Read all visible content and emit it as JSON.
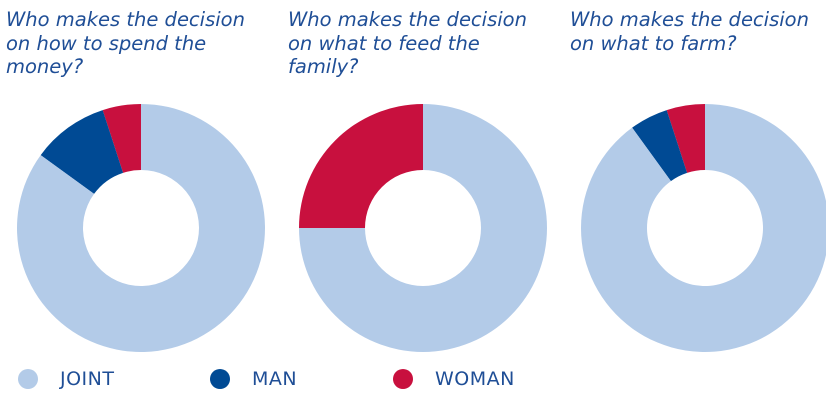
{
  "colors": {
    "joint": "#b3cbe8",
    "man": "#004a94",
    "woman": "#c8103e",
    "title": "#1f4e96"
  },
  "legend": [
    {
      "key": "joint",
      "label": "JOINT"
    },
    {
      "key": "man",
      "label": "MAN"
    },
    {
      "key": "woman",
      "label": "WOMAN"
    }
  ],
  "chart_data": [
    {
      "type": "pie",
      "title": "Who makes the decision\non how to spend the\nmoney?",
      "categories": [
        "JOINT",
        "MAN",
        "WOMAN"
      ],
      "values": [
        85,
        10,
        5
      ]
    },
    {
      "type": "pie",
      "title": "Who makes the decision\non what to feed the\nfamily?",
      "categories": [
        "JOINT",
        "MAN",
        "WOMAN"
      ],
      "values": [
        75,
        0,
        25
      ]
    },
    {
      "type": "pie",
      "title": "Who makes the decision\non what to farm?",
      "categories": [
        "JOINT",
        "MAN",
        "WOMAN"
      ],
      "values": [
        90,
        5,
        5
      ]
    }
  ]
}
